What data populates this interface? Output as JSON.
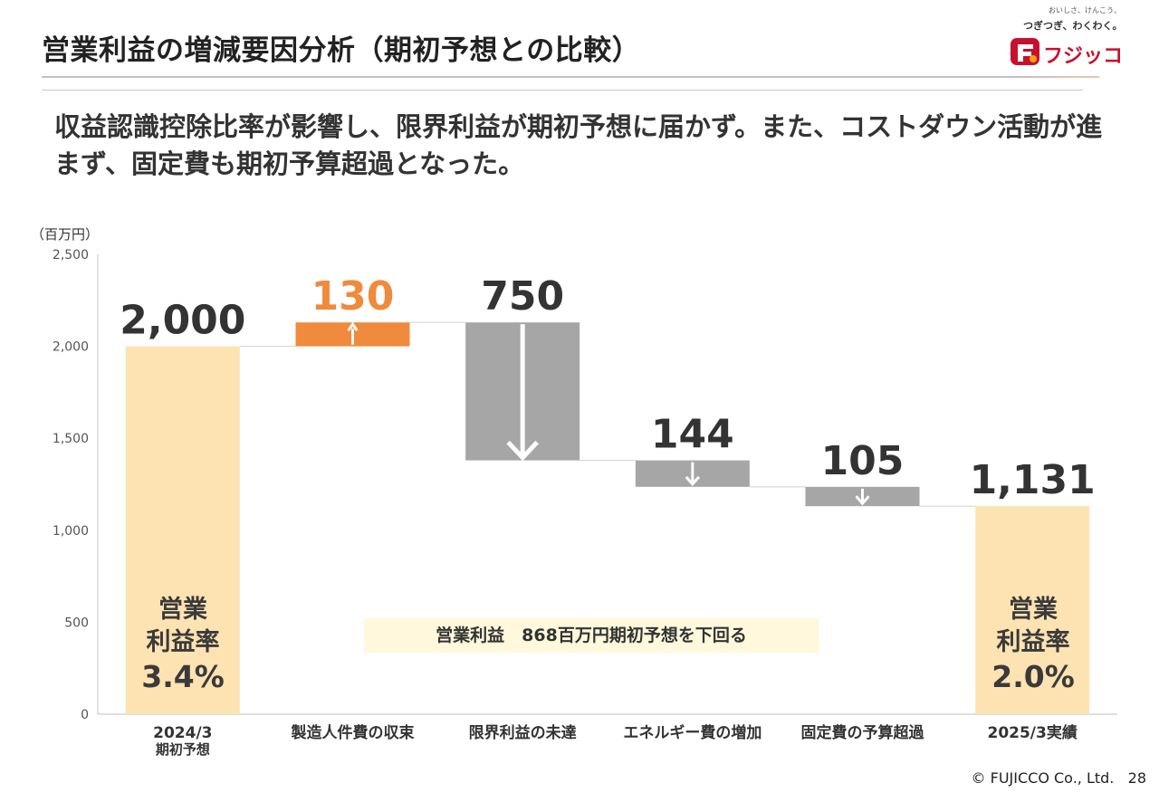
{
  "header": {
    "title": "営業利益の増減要因分析（期初予想との比較）",
    "logo": {
      "tagline_top": "おいしさ、けんこう、",
      "tagline_main": "つぎつぎ、わくわく。",
      "wordmark": "フジッコ",
      "brand_color": "#c8102e",
      "accent_color": "#f7a21b"
    }
  },
  "headline": "収益認識控除比率が影響し、限界利益が期初予想に届かず。また、コストダウン活動が進まず、固定費も期初予算超過となった。",
  "chart_data": {
    "type": "bar",
    "subtype": "waterfall",
    "unit_label": "（百万円）",
    "ylim": [
      0,
      2500
    ],
    "yticks": [
      0,
      500,
      1000,
      1500,
      2000,
      2500
    ],
    "ytick_labels": [
      "0",
      "500",
      "1,000",
      "1,500",
      "2,000",
      "2,500"
    ],
    "grid": false,
    "categories": [
      [
        "2024/3",
        "期初予想"
      ],
      [
        "製造人件費の収束"
      ],
      [
        "限界利益の未達"
      ],
      [
        "エネルギー費の増加"
      ],
      [
        "固定費の予算超過"
      ],
      [
        "2025/3実績"
      ]
    ],
    "bars": [
      {
        "kind": "total",
        "value": 2000,
        "label": "2,000",
        "color": "#fde3b2",
        "label_color": "#333333"
      },
      {
        "kind": "increase",
        "value": 130,
        "label": "130",
        "color": "#f08a3c",
        "label_color": "#f08a3c"
      },
      {
        "kind": "decrease",
        "value": 750,
        "label": "750",
        "color": "#a6a6a6",
        "label_color": "#333333"
      },
      {
        "kind": "decrease",
        "value": 144,
        "label": "144",
        "color": "#a6a6a6",
        "label_color": "#333333"
      },
      {
        "kind": "decrease",
        "value": 105,
        "label": "105",
        "color": "#a6a6a6",
        "label_color": "#333333"
      },
      {
        "kind": "total",
        "value": 1131,
        "label": "1,131",
        "color": "#fde3b2",
        "label_color": "#333333"
      }
    ],
    "inner_labels": [
      {
        "bar": 0,
        "line1": "営業",
        "line2": "利益率",
        "line3": "3.4%"
      },
      {
        "bar": 5,
        "line1": "営業",
        "line2": "利益率",
        "line3": "2.0%"
      }
    ],
    "callout": "営業利益　868百万円期初予想を下回る"
  },
  "footer": {
    "copyright": "© FUJICCO Co., Ltd.",
    "page": "28"
  }
}
